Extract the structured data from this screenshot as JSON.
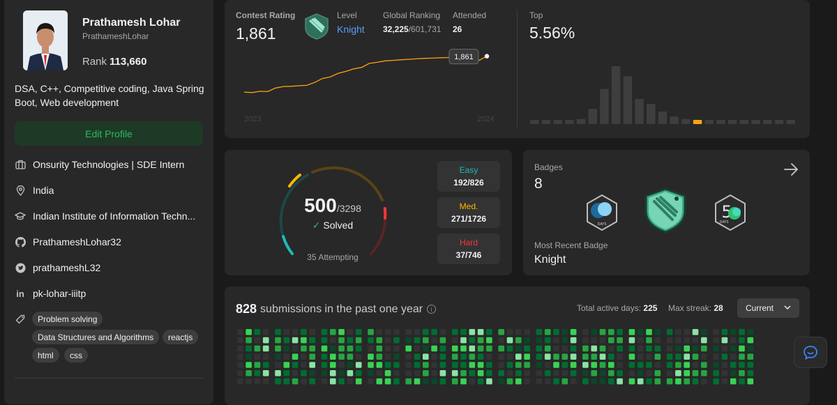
{
  "profile": {
    "name": "Prathamesh Lohar",
    "handle": "PrathameshLohar",
    "rank_label": "Rank",
    "rank_value": "113,660",
    "bio": "DSA, C++, Competitive coding, Java Spring Boot, Web development",
    "edit_label": "Edit Profile",
    "company": "Onsurity Technologies | SDE Intern",
    "location": "India",
    "school": "Indian Institute of Information Techn...",
    "github": "PrathameshLohar32",
    "twitter": "prathameshL32",
    "linkedin": "pk-lohar-iiitp",
    "skills": [
      "Problem solving",
      "Data Structures and Algorithms",
      "reactjs",
      "html",
      "css"
    ]
  },
  "rating": {
    "contest_label": "Contest Rating",
    "contest_value": "1,861",
    "level_label": "Level",
    "level_value": "Knight",
    "global_label": "Global Ranking",
    "global_value": "32,225",
    "global_total": "/601,731",
    "attended_label": "Attended",
    "attended_value": "26",
    "top_label": "Top",
    "top_value": "5.56%",
    "tooltip": "1,861",
    "year_start": "2023",
    "year_end": "2024",
    "history": [
      1505,
      1500,
      1512,
      1510,
      1545,
      1560,
      1562,
      1568,
      1572,
      1600,
      1640,
      1655,
      1690,
      1710,
      1735,
      1750,
      1790,
      1800,
      1815,
      1820,
      1825,
      1830,
      1835,
      1840,
      1842,
      1845,
      1848,
      1850,
      1850,
      1852,
      1820,
      1861
    ],
    "histogram": [
      1,
      1,
      1,
      1,
      2,
      6,
      14,
      23,
      19,
      10,
      8,
      5,
      3,
      2,
      1,
      1,
      1,
      1,
      1,
      1,
      1,
      1,
      1,
      1,
      1,
      1
    ],
    "highlight_index": 14,
    "accent": "#ffa116"
  },
  "solved": {
    "count": "500",
    "total": "/3298",
    "solved_label": "Solved",
    "attempting": "35 Attempting",
    "easy_label": "Easy",
    "easy_value": "192/826",
    "easy_color": "#1cbaba",
    "med_label": "Med.",
    "med_value": "271/1726",
    "med_color": "#ffb700",
    "hard_label": "Hard",
    "hard_value": "37/746",
    "hard_color": "#f63737"
  },
  "badges": {
    "label": "Badges",
    "count": "8",
    "recent_label": "Most Recent Badge",
    "recent_value": "Knight",
    "items": [
      "days-badge-icon",
      "knight-badge-icon",
      "fifty-days-badge-icon"
    ]
  },
  "submissions": {
    "count": "828",
    "text": "submissions in the past one year",
    "active_label": "Total active days:",
    "active_value": "225",
    "streak_label": "Max streak:",
    "streak_value": "28",
    "dropdown": "Current"
  }
}
